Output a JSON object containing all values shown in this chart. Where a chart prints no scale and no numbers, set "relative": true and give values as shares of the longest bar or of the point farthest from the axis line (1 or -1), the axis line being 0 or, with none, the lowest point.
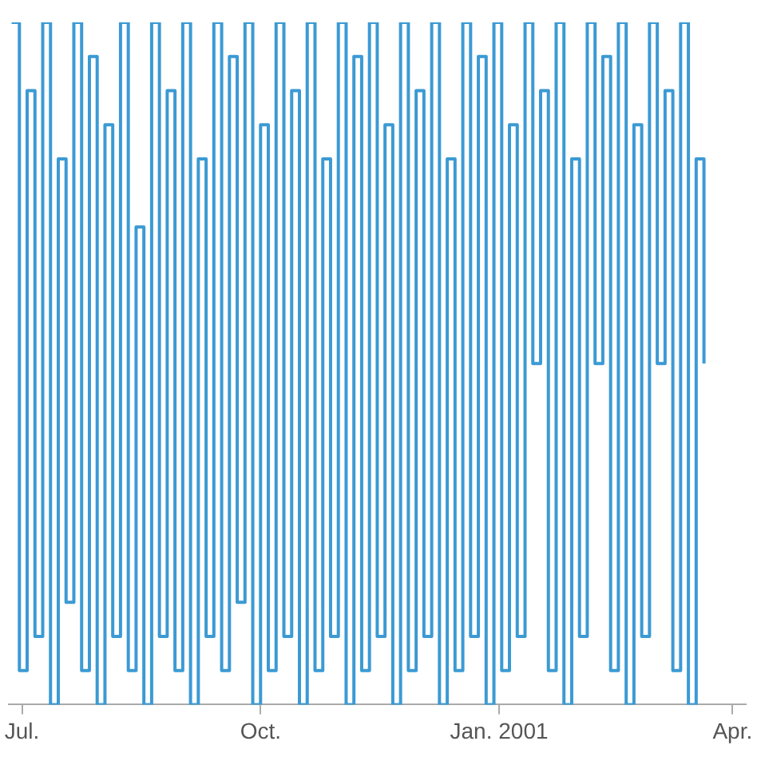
{
  "chart_data": {
    "type": "step",
    "relative": true,
    "color": "#3b9ad4",
    "grid": false,
    "marker": "none",
    "x": [
      "2000-06-27",
      "2000-06-30",
      "2000-07-03",
      "2000-07-06",
      "2000-07-09",
      "2000-07-12",
      "2000-07-15",
      "2000-07-18",
      "2000-07-21",
      "2000-07-24",
      "2000-07-27",
      "2000-07-30",
      "2000-08-02",
      "2000-08-05",
      "2000-08-08",
      "2000-08-11",
      "2000-08-14",
      "2000-08-17",
      "2000-08-20",
      "2000-08-23",
      "2000-08-26",
      "2000-08-29",
      "2000-09-01",
      "2000-09-04",
      "2000-09-07",
      "2000-09-10",
      "2000-09-13",
      "2000-09-16",
      "2000-09-19",
      "2000-09-22",
      "2000-09-25",
      "2000-09-28",
      "2000-10-01",
      "2000-10-04",
      "2000-10-07",
      "2000-10-10",
      "2000-10-13",
      "2000-10-16",
      "2000-10-19",
      "2000-10-22",
      "2000-10-25",
      "2000-10-28",
      "2000-10-31",
      "2000-11-03",
      "2000-11-06",
      "2000-11-09",
      "2000-11-12",
      "2000-11-15",
      "2000-11-18",
      "2000-11-21",
      "2000-11-24",
      "2000-11-27",
      "2000-11-30",
      "2000-12-03",
      "2000-12-06",
      "2000-12-09",
      "2000-12-12",
      "2000-12-15",
      "2000-12-18",
      "2000-12-21",
      "2000-12-24",
      "2000-12-27",
      "2000-12-30",
      "2001-01-02",
      "2001-01-05",
      "2001-01-08",
      "2001-01-11",
      "2001-01-14",
      "2001-01-17",
      "2001-01-20",
      "2001-01-23",
      "2001-01-26",
      "2001-01-29",
      "2001-02-01",
      "2001-02-04",
      "2001-02-07",
      "2001-02-10",
      "2001-02-13",
      "2001-02-16",
      "2001-02-19",
      "2001-02-22",
      "2001-02-25",
      "2001-02-28",
      "2001-03-03",
      "2001-03-06",
      "2001-03-09",
      "2001-03-12",
      "2001-03-15",
      "2001-03-18",
      "2001-03-21"
    ],
    "values": [
      1,
      0.05,
      0.9,
      0.1,
      1,
      0,
      0.8,
      0.15,
      1,
      0.05,
      0.95,
      0,
      0.85,
      0.1,
      1,
      0.05,
      0.7,
      0,
      1,
      0.1,
      0.9,
      0.05,
      1,
      0,
      0.8,
      0.1,
      1,
      0.05,
      0.95,
      0.15,
      1,
      0,
      0.85,
      0.05,
      1,
      0.1,
      0.9,
      0,
      1,
      0.05,
      0.8,
      0.1,
      1,
      0,
      0.95,
      0.05,
      1,
      0.1,
      0.85,
      0,
      1,
      0.05,
      0.9,
      0.1,
      1,
      0,
      0.8,
      0.05,
      1,
      0.1,
      0.95,
      0,
      1,
      0.05,
      0.85,
      0.1,
      1,
      0.5,
      0.9,
      0.05,
      1,
      0,
      0.8,
      0.1,
      1,
      0.5,
      0.95,
      0.05,
      1,
      0,
      0.85,
      0.1,
      1,
      0.5,
      0.9,
      0.05,
      1,
      0,
      0.8,
      0.5
    ],
    "xlim": [
      "2000-06-26",
      "2001-04-06"
    ],
    "xticks": [
      {
        "value": "2000-07-01",
        "label": "Jul."
      },
      {
        "value": "2000-10-01",
        "label": "Oct."
      },
      {
        "value": "2001-01-01",
        "label": "Jan. 2001"
      },
      {
        "value": "2001-04-01",
        "label": "Apr."
      }
    ],
    "legend": false
  }
}
